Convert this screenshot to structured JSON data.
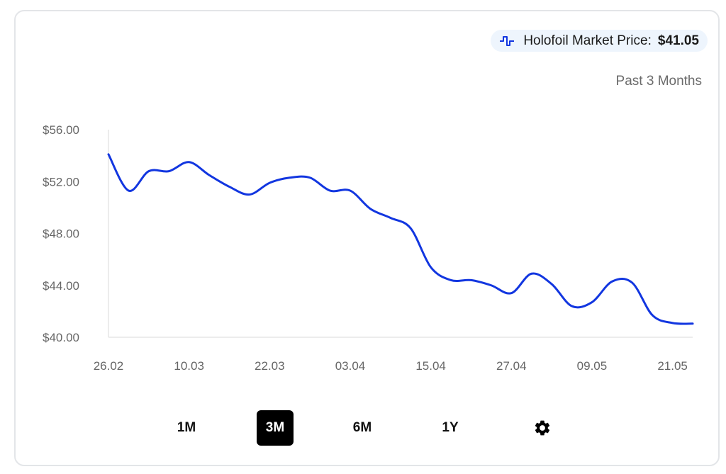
{
  "header": {
    "badge_icon": "market-price-pulse-icon",
    "badge_label": "Holofoil Market Price:",
    "badge_value": "$41.05",
    "period": "Past 3 Months"
  },
  "ranges": [
    {
      "label": "1M",
      "active": false
    },
    {
      "label": "3M",
      "active": true
    },
    {
      "label": "6M",
      "active": false
    },
    {
      "label": "1Y",
      "active": false
    }
  ],
  "settings_icon": "gear-icon",
  "colors": {
    "line": "#1236e0",
    "accent_bg": "#eef5fd"
  },
  "chart_data": {
    "type": "line",
    "title": "Holofoil Market Price",
    "xlabel": "",
    "ylabel": "",
    "ylim": [
      40,
      56
    ],
    "xlim_days": [
      0,
      87
    ],
    "y_ticks": [
      "$40.00",
      "$44.00",
      "$48.00",
      "$52.00",
      "$56.00"
    ],
    "y_tick_values": [
      40,
      44,
      48,
      52,
      56
    ],
    "x_ticks": [
      "26.02",
      "10.03",
      "22.03",
      "03.04",
      "15.04",
      "27.04",
      "09.05",
      "21.05"
    ],
    "x_tick_days": [
      0,
      12,
      24,
      36,
      48,
      60,
      72,
      84
    ],
    "grid": false,
    "series": [
      {
        "name": "Holofoil Market Price",
        "days": [
          0,
          3,
          6,
          9,
          12,
          15,
          18,
          21,
          24,
          27,
          30,
          33,
          36,
          39,
          42,
          45,
          48,
          51,
          54,
          57,
          60,
          63,
          66,
          69,
          72,
          75,
          78,
          81,
          84,
          87
        ],
        "values": [
          54.1,
          51.3,
          52.8,
          52.8,
          53.5,
          52.5,
          51.6,
          51.0,
          51.9,
          52.3,
          52.3,
          51.3,
          51.3,
          49.9,
          49.2,
          48.4,
          45.4,
          44.4,
          44.4,
          44.0,
          43.4,
          44.9,
          44.1,
          42.4,
          42.7,
          44.3,
          44.2,
          41.7,
          41.1,
          41.05
        ]
      }
    ]
  }
}
